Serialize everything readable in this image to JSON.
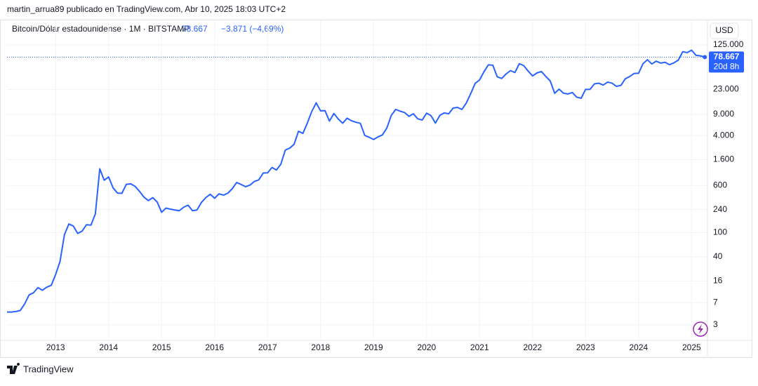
{
  "chart_data": {
    "type": "line",
    "attribution": "martin_arrua89 publicado en TradingView.com, Abr 10, 2025 18:03 UTC+2",
    "symbol": "Bitcoin/Dólar estadounidense · 1M · BITSTAMP",
    "last_label": "78.667",
    "change_label": "−3.871 (−4,69%)",
    "countdown": "20d 8h",
    "currency": "USD",
    "brand": "TradingView",
    "color": "#2962ff",
    "log_scale": true,
    "grid": true,
    "xlim": [
      2012.083,
      2025.3
    ],
    "xticks": [
      2013,
      2014,
      2015,
      2016,
      2017,
      2018,
      2019,
      2020,
      2021,
      2022,
      2023,
      2024,
      2025
    ],
    "ylim": [
      1.67,
      318000
    ],
    "yticks": [
      3,
      7,
      16,
      40,
      100,
      240,
      600,
      {
        "value": 1600,
        "label": "1.600"
      },
      {
        "value": 4000,
        "label": "4.000"
      },
      {
        "value": 9000,
        "label": "9.000"
      },
      {
        "value": 23000,
        "label": "23.000"
      },
      {
        "value": 125000,
        "label": "125.000"
      }
    ],
    "x": [
      2012.083,
      2012.167,
      2012.25,
      2012.333,
      2012.417,
      2012.5,
      2012.583,
      2012.667,
      2012.75,
      2012.833,
      2012.917,
      2013,
      2013.083,
      2013.167,
      2013.25,
      2013.333,
      2013.417,
      2013.5,
      2013.583,
      2013.667,
      2013.75,
      2013.833,
      2013.917,
      2014,
      2014.083,
      2014.167,
      2014.25,
      2014.333,
      2014.417,
      2014.5,
      2014.583,
      2014.667,
      2014.75,
      2014.833,
      2014.917,
      2015,
      2015.083,
      2015.167,
      2015.25,
      2015.333,
      2015.417,
      2015.5,
      2015.583,
      2015.667,
      2015.75,
      2015.833,
      2015.917,
      2016,
      2016.083,
      2016.167,
      2016.25,
      2016.333,
      2016.417,
      2016.5,
      2016.583,
      2016.667,
      2016.75,
      2016.833,
      2016.917,
      2017,
      2017.083,
      2017.167,
      2017.25,
      2017.333,
      2017.417,
      2017.5,
      2017.583,
      2017.667,
      2017.75,
      2017.833,
      2017.917,
      2018,
      2018.083,
      2018.167,
      2018.25,
      2018.333,
      2018.417,
      2018.5,
      2018.583,
      2018.667,
      2018.75,
      2018.833,
      2018.917,
      2019,
      2019.083,
      2019.167,
      2019.25,
      2019.333,
      2019.417,
      2019.5,
      2019.583,
      2019.667,
      2019.75,
      2019.833,
      2019.917,
      2020,
      2020.083,
      2020.167,
      2020.25,
      2020.333,
      2020.417,
      2020.5,
      2020.583,
      2020.667,
      2020.75,
      2020.833,
      2020.917,
      2021,
      2021.083,
      2021.167,
      2021.25,
      2021.333,
      2021.417,
      2021.5,
      2021.583,
      2021.667,
      2021.75,
      2021.833,
      2021.917,
      2022,
      2022.083,
      2022.167,
      2022.25,
      2022.333,
      2022.417,
      2022.5,
      2022.583,
      2022.667,
      2022.75,
      2022.833,
      2022.917,
      2023,
      2023.083,
      2023.167,
      2023.25,
      2023.333,
      2023.417,
      2023.5,
      2023.583,
      2023.667,
      2023.75,
      2023.833,
      2023.917,
      2024,
      2024.083,
      2024.167,
      2024.25,
      2024.333,
      2024.417,
      2024.5,
      2024.583,
      2024.667,
      2024.75,
      2024.833,
      2024.917,
      2025,
      2025.083,
      2025.167,
      2025.25
    ],
    "values": [
      4.9,
      4.9,
      5.0,
      5.2,
      6.7,
      9.4,
      10.2,
      12.4,
      11.2,
      12.6,
      13.5,
      20.4,
      33.4,
      93,
      139,
      129,
      97,
      106,
      135,
      133,
      204,
      1130,
      732,
      830,
      550,
      450,
      445,
      625,
      640,
      580,
      480,
      386,
      338,
      378,
      320,
      217,
      254,
      244,
      236,
      230,
      263,
      284,
      230,
      236,
      314,
      378,
      430,
      369,
      437,
      416,
      448,
      531,
      673,
      624,
      573,
      609,
      700,
      742,
      963,
      970,
      1190,
      1080,
      1350,
      2300,
      2480,
      2870,
      4700,
      4340,
      6450,
      9950,
      13850,
      10200,
      10300,
      6930,
      9240,
      7500,
      6390,
      7730,
      7010,
      6630,
      6370,
      4020,
      3740,
      3440,
      3800,
      4100,
      5320,
      8560,
      10800,
      10100,
      9600,
      8300,
      9150,
      7550,
      7200,
      9350,
      8530,
      6410,
      8620,
      9450,
      9140,
      11350,
      11660,
      10780,
      13800,
      19700,
      29000,
      33100,
      45200,
      58800,
      57700,
      37300,
      35000,
      41500,
      47100,
      43800,
      61300,
      57000,
      46200,
      38500,
      43200,
      45500,
      37700,
      31800,
      19900,
      23300,
      20000,
      19400,
      20500,
      17200,
      16500,
      23100,
      23100,
      28500,
      29200,
      27200,
      30500,
      29200,
      25900,
      26900,
      34600,
      37700,
      42300,
      42600,
      61200,
      71300,
      60600,
      67500,
      62700,
      64600,
      59000,
      63300,
      70300,
      96400,
      93400,
      102400,
      84300,
      82500,
      78667
    ]
  }
}
